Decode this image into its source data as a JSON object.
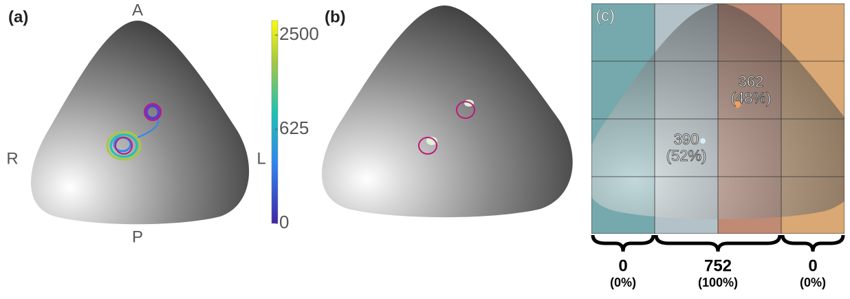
{
  "panels": [
    {
      "label": "(a)",
      "orientation": {
        "top": "A",
        "bottom": "P",
        "left": "R",
        "right": "L"
      },
      "colorbar": {
        "scale": "sqrt",
        "lim": [
          0,
          2900
        ],
        "ticks": [
          0,
          625,
          2500
        ]
      }
    },
    {
      "label": "(b)"
    },
    {
      "label": "(c)",
      "points": [
        {
          "count": 362,
          "share": "(48%)"
        },
        {
          "count": 390,
          "share": "(52%)"
        }
      ],
      "columns": [
        {
          "count": 0,
          "share": "(0%)"
        },
        {
          "count": 752,
          "share": "(100%)"
        },
        {
          "count": 0,
          "share": "(0%)"
        }
      ]
    }
  ]
}
